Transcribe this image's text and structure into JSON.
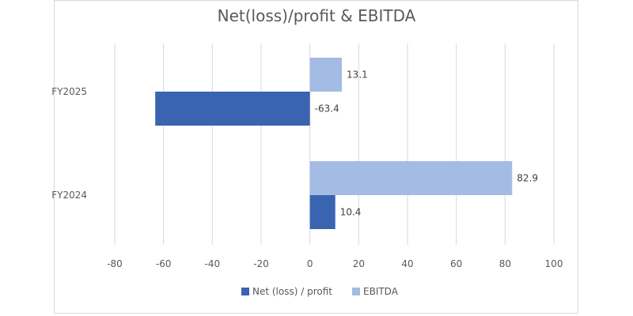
{
  "chart_data": {
    "type": "bar",
    "orientation": "horizontal",
    "title": "Net(loss)/profit & EBITDA",
    "categories": [
      "FY2025",
      "FY2024"
    ],
    "series": [
      {
        "name": "Net (loss) / profit",
        "color": "#3a63b0",
        "values": [
          -63.4,
          10.4
        ]
      },
      {
        "name": "EBITDA",
        "color": "#a4bce3",
        "values": [
          13.1,
          82.9
        ]
      }
    ],
    "data_labels": {
      "Net (loss) / profit": [
        "-63.4",
        "10.4"
      ],
      "EBITDA": [
        "13.1",
        "82.9"
      ]
    },
    "xlim": [
      -80,
      100
    ],
    "xticks": [
      -80,
      -60,
      -40,
      -20,
      0,
      20,
      40,
      60,
      80,
      100
    ],
    "grid": "vertical",
    "legend_position": "bottom"
  }
}
